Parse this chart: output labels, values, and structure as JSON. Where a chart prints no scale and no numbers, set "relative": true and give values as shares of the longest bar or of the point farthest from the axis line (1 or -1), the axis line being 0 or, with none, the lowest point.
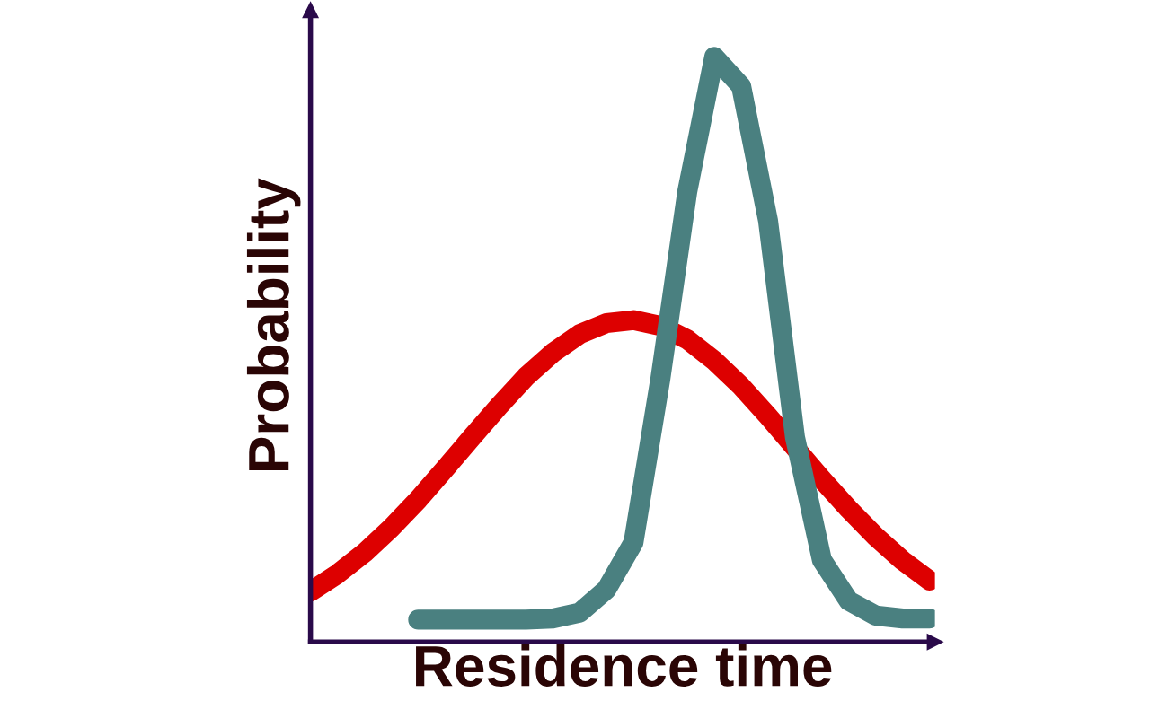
{
  "chart_data": {
    "type": "line",
    "xlabel": "Residence time",
    "ylabel": "Probability",
    "relative": true,
    "tick_labels": false,
    "categories": [
      null,
      null,
      null,
      null,
      null,
      null,
      null,
      null,
      null,
      null,
      null,
      null,
      null,
      null,
      null,
      null,
      null,
      null,
      null,
      null,
      null,
      null,
      null,
      null
    ],
    "series": [
      {
        "color": "#dd0000",
        "values": [
          0.086,
          0.116,
          0.152,
          0.195,
          0.243,
          0.296,
          0.35,
          0.403,
          0.453,
          0.494,
          0.526,
          0.545,
          0.55,
          0.54,
          0.517,
          0.481,
          0.437,
          0.386,
          0.332,
          0.278,
          0.227,
          0.18,
          0.139,
          0.105
        ]
      },
      {
        "color": "#4a8080",
        "values": [
          null,
          null,
          null,
          null,
          0.038,
          0.038,
          0.038,
          0.038,
          0.038,
          0.04,
          0.05,
          0.09,
          0.17,
          0.45,
          0.77,
          1.0,
          0.95,
          0.72,
          0.35,
          0.14,
          0.07,
          0.045,
          0.04,
          0.04
        ]
      }
    ]
  }
}
